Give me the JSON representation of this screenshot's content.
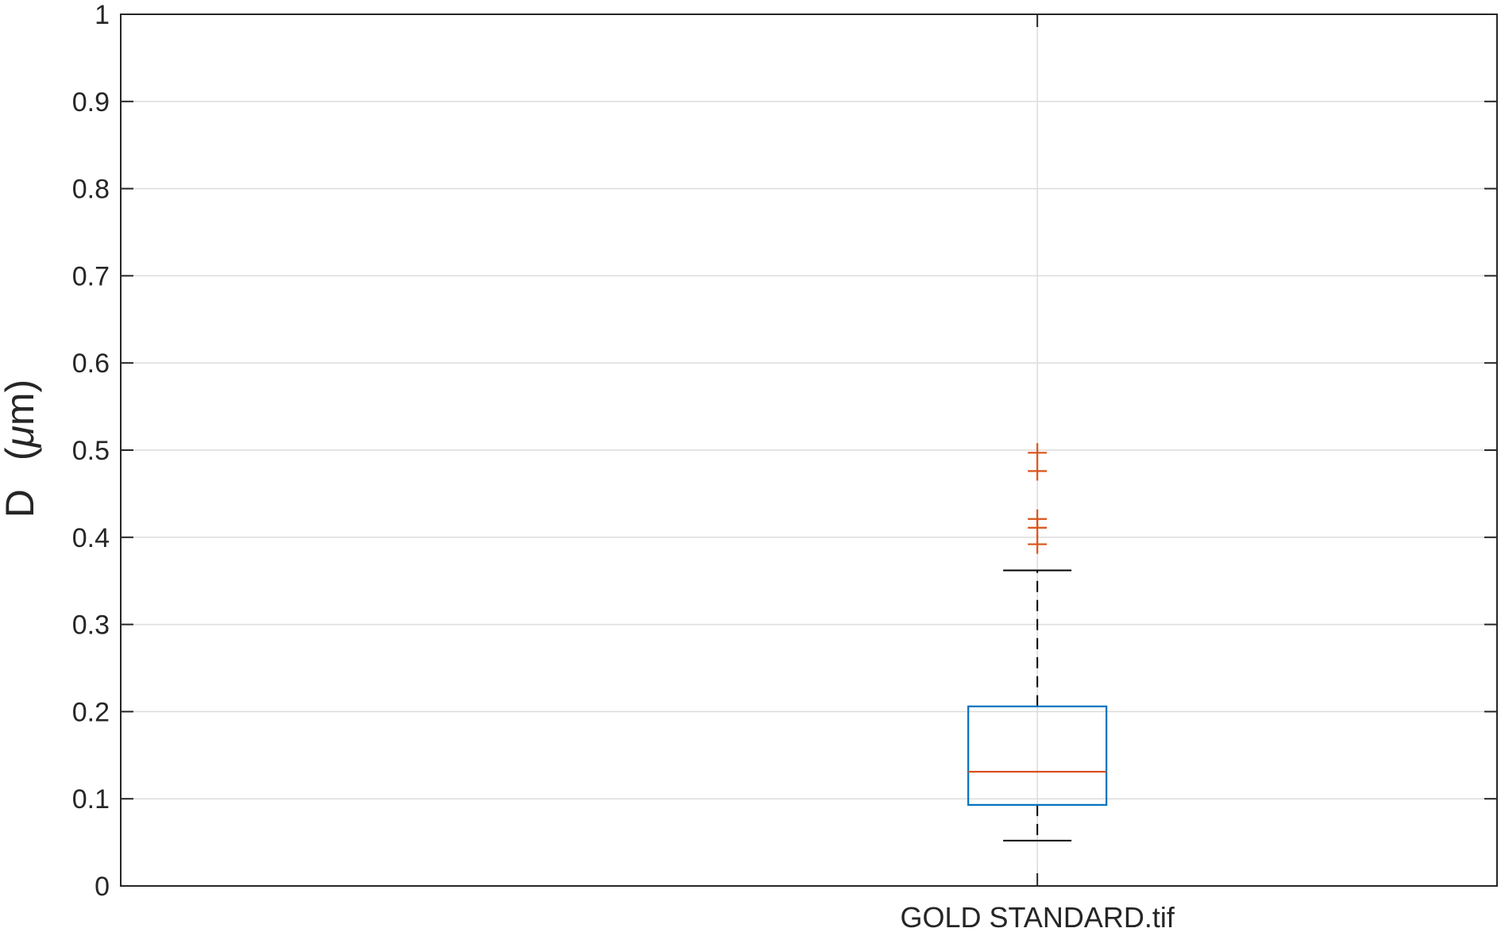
{
  "chart_data": {
    "type": "box",
    "categories": [
      "GOLD STANDARD.tif"
    ],
    "ylabel_main": "D",
    "ylabel_unit_open": "(",
    "ylabel_unit_mu": "μ",
    "ylabel_unit_rest": "m)",
    "ylim": [
      0,
      1
    ],
    "yticks": [
      0,
      0.1,
      0.2,
      0.3,
      0.4,
      0.5,
      0.6,
      0.7,
      0.8,
      0.9,
      1
    ],
    "ytick_labels": [
      "0",
      "0.1",
      "0.2",
      "0.3",
      "0.4",
      "0.5",
      "0.6",
      "0.7",
      "0.8",
      "0.9",
      "1"
    ],
    "grid": true,
    "boxes": [
      {
        "category": "GOLD STANDARD.tif",
        "whisker_low": 0.052,
        "q1": 0.093,
        "median": 0.131,
        "q3": 0.206,
        "whisker_high": 0.362,
        "outliers": [
          0.392,
          0.411,
          0.421,
          0.476,
          0.497
        ]
      }
    ],
    "colors": {
      "box": "#0072BD",
      "median": "#D95319",
      "outlier": "#D95319",
      "whisker": "#000000",
      "grid": "#dcdcdc",
      "axis": "#262626"
    }
  }
}
